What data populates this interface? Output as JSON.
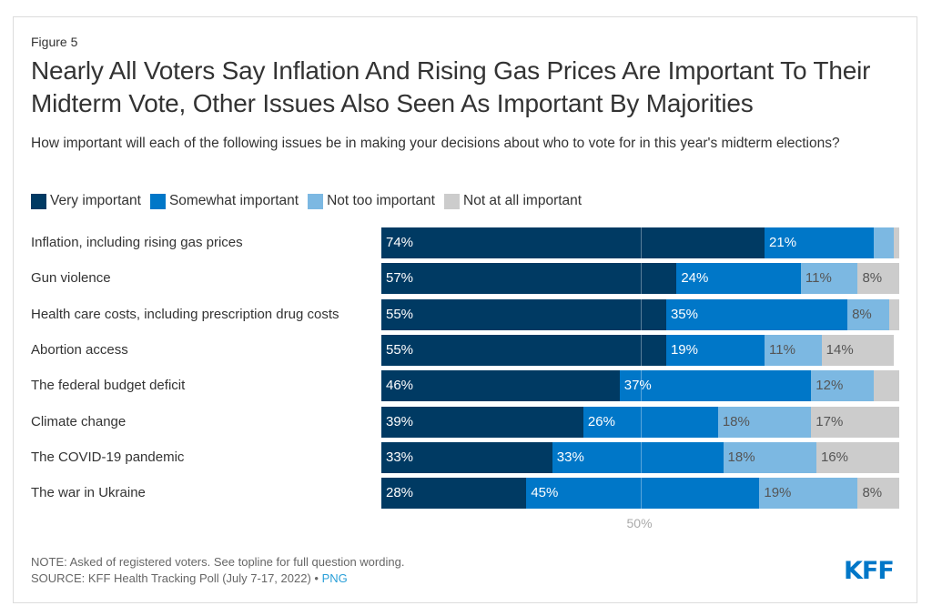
{
  "figure_label": "Figure 5",
  "title": "Nearly All Voters Say Inflation And Rising Gas Prices Are Important To Their Midterm Vote, Other Issues Also Seen As Important By Majorities",
  "subtitle": "How important will each of the following issues be in making your decisions about who to vote for in this year's midterm elections?",
  "colors": {
    "very": "#003a63",
    "somewhat": "#0077c8",
    "not_too": "#7cb8e2",
    "not_at_all": "#cccccc"
  },
  "footer": {
    "note": "NOTE: Asked of registered voters. See topline for full question wording.",
    "source": "SOURCE: KFF Health Tracking Poll (July 7-17, 2022) • ",
    "png_link": "PNG",
    "logo": "KFF"
  },
  "chart_data": {
    "type": "bar",
    "orientation": "horizontal",
    "stacked": true,
    "title": "Nearly All Voters Say Inflation And Rising Gas Prices Are Important To Their Midterm Vote, Other Issues Also Seen As Important By Majorities",
    "xlabel": "",
    "ylabel": "",
    "xlim": [
      0,
      100
    ],
    "reference_line": {
      "value": 50,
      "label": "50%"
    },
    "legend_position": "top-left",
    "categories": [
      "Inflation, including rising gas prices",
      "Gun violence",
      "Health care costs, including prescription drug costs",
      "Abortion access",
      "The federal budget deficit",
      "Climate change",
      "The COVID-19 pandemic",
      "The war in Ukraine"
    ],
    "series": [
      {
        "name": "Very important",
        "key": "very",
        "values": [
          74,
          57,
          55,
          55,
          46,
          39,
          33,
          28
        ],
        "labels": [
          "74%",
          "57%",
          "55%",
          "55%",
          "46%",
          "39%",
          "33%",
          "28%"
        ]
      },
      {
        "name": "Somewhat important",
        "key": "somewhat",
        "values": [
          21,
          24,
          35,
          19,
          37,
          26,
          33,
          45
        ],
        "labels": [
          "21%",
          "24%",
          "35%",
          "19%",
          "37%",
          "26%",
          "33%",
          "45%"
        ]
      },
      {
        "name": "Not too important",
        "key": "not_too",
        "values": [
          4,
          11,
          8,
          11,
          12,
          18,
          18,
          19
        ],
        "labels": [
          "",
          "11%",
          "8%",
          "11%",
          "12%",
          "18%",
          "18%",
          "19%"
        ]
      },
      {
        "name": "Not at all important",
        "key": "not_at_all",
        "values": [
          1,
          8,
          2,
          14,
          5,
          17,
          16,
          8
        ],
        "labels": [
          "",
          "8%",
          "",
          "14%",
          "",
          "17%",
          "16%",
          "8%"
        ]
      }
    ]
  }
}
